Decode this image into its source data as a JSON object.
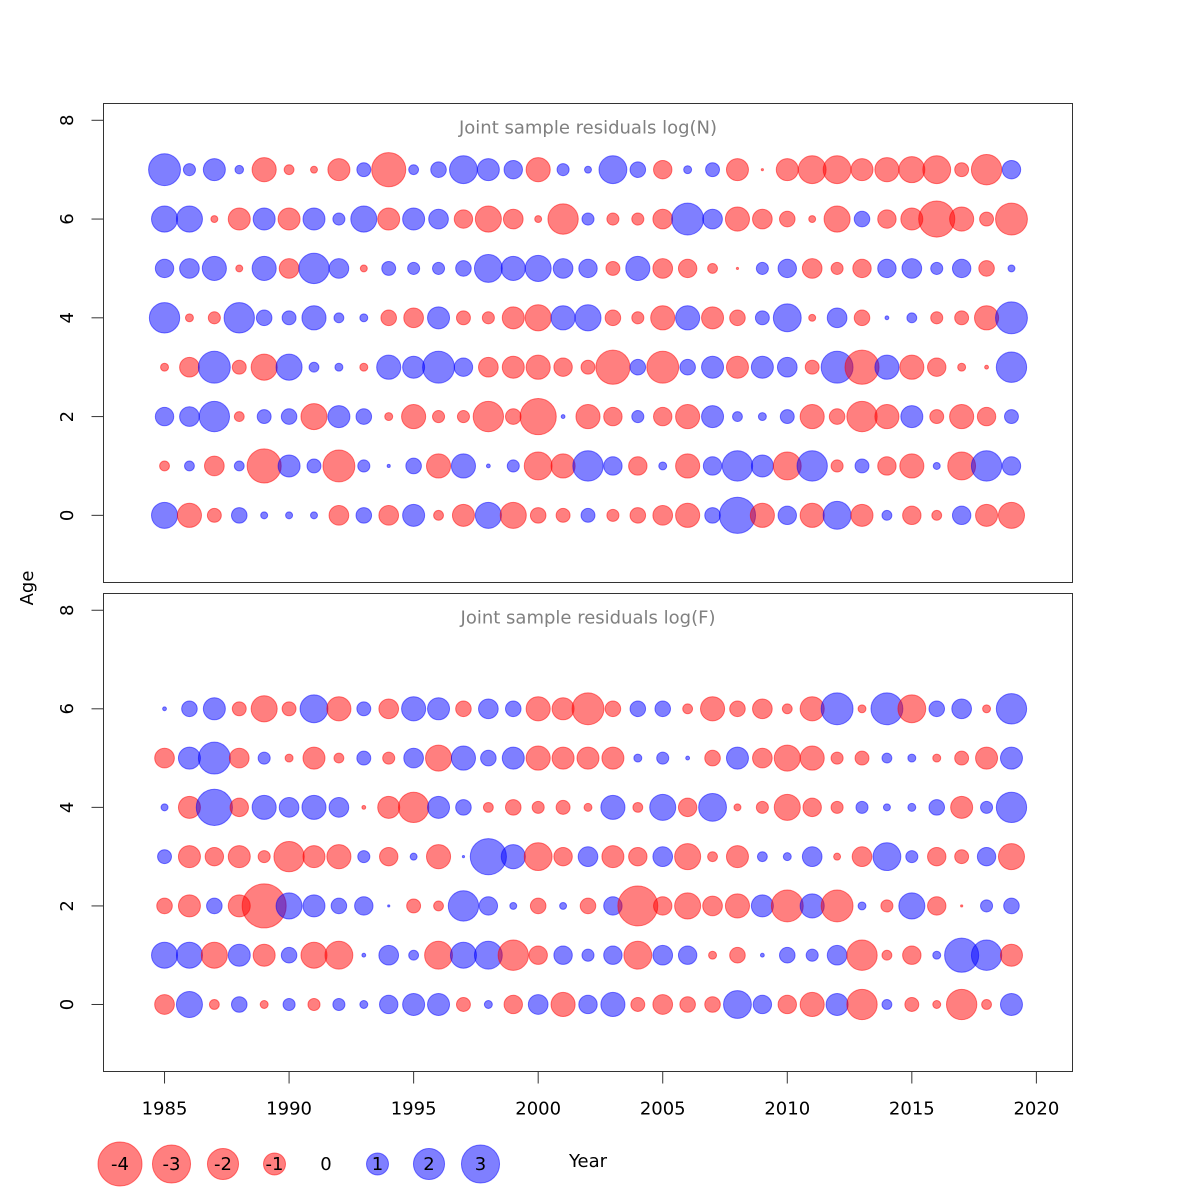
{
  "chart_data": [
    {
      "type": "bubble",
      "title": "Joint sample residuals log(N)",
      "ylabel": "Age",
      "x": [
        1985,
        1986,
        1987,
        1988,
        1989,
        1990,
        1991,
        1992,
        1993,
        1994,
        1995,
        1996,
        1997,
        1998,
        1999,
        2000,
        2001,
        2002,
        2003,
        2004,
        2005,
        2006,
        2007,
        2008,
        2009,
        2010,
        2011,
        2012,
        2013,
        2014,
        2015,
        2016,
        2017,
        2018,
        2019
      ],
      "y": [
        0,
        1,
        2,
        3,
        4,
        5,
        6,
        7
      ],
      "values": [
        [
          1.4,
          -1.2,
          -0.4,
          0.5,
          0.1,
          0.1,
          0.1,
          -0.8,
          0.5,
          -0.8,
          1.0,
          -0.2,
          -1.0,
          1.4,
          -1.4,
          -0.5,
          -0.4,
          0.4,
          -0.3,
          -0.5,
          -0.8,
          -1.2,
          0.5,
          2.7,
          -1.2,
          0.7,
          -1.2,
          1.6,
          -1.0,
          0.2,
          -0.7,
          -0.2,
          0.7,
          -1.0,
          -1.4
        ],
        [
          -0.2,
          0.2,
          -0.8,
          0.2,
          -2.4,
          1.0,
          0.4,
          -2.1,
          0.3,
          0.02,
          0.5,
          -1.2,
          1.2,
          0.03,
          0.3,
          -1.6,
          -1.2,
          1.9,
          0.7,
          -0.7,
          0.13,
          -1.2,
          0.7,
          1.9,
          1.0,
          -1.6,
          1.9,
          -0.3,
          0.4,
          -0.7,
          -1.2,
          0.1,
          -1.6,
          1.9,
          0.7
        ],
        [
          0.7,
          0.8,
          1.9,
          -0.2,
          0.4,
          0.5,
          -1.4,
          1.0,
          0.5,
          -0.13,
          -1.2,
          -0.3,
          -0.3,
          -1.9,
          -0.5,
          -2.7,
          0.03,
          -1.2,
          -0.7,
          0.3,
          -0.7,
          -1.2,
          1.0,
          0.2,
          0.13,
          0.4,
          -1.2,
          -0.5,
          -1.9,
          -1.2,
          1.0,
          -0.4,
          -1.2,
          -0.7,
          0.4
        ],
        [
          -0.13,
          -0.8,
          2.1,
          -0.4,
          -1.4,
          1.4,
          0.2,
          0.13,
          -0.13,
          1.2,
          1.0,
          2.1,
          0.7,
          -0.8,
          -1.0,
          -1.2,
          -0.7,
          -0.4,
          -2.4,
          0.5,
          -2.1,
          0.5,
          1.0,
          -1.0,
          1.0,
          0.8,
          -0.4,
          2.1,
          -2.4,
          1.2,
          -1.2,
          -0.7,
          -0.13,
          -0.03,
          1.9
        ],
        [
          1.9,
          -0.13,
          -0.3,
          1.9,
          0.5,
          0.4,
          1.2,
          0.2,
          0.13,
          -0.5,
          -0.8,
          1.0,
          -0.4,
          -0.3,
          -1.0,
          -1.4,
          1.2,
          1.4,
          -0.5,
          -0.3,
          -1.2,
          1.2,
          -1.0,
          -0.5,
          0.4,
          1.6,
          -0.1,
          0.8,
          -0.5,
          0.03,
          0.2,
          -0.3,
          -0.4,
          -1.2,
          2.1
        ],
        [
          0.7,
          0.8,
          1.2,
          -0.1,
          1.2,
          -0.8,
          1.9,
          0.8,
          -0.1,
          0.4,
          0.3,
          0.3,
          0.5,
          1.6,
          1.2,
          1.4,
          0.8,
          0.7,
          -0.4,
          1.2,
          -0.8,
          -0.7,
          -0.2,
          -0.01,
          0.3,
          0.7,
          -0.8,
          -0.3,
          -0.7,
          0.7,
          0.8,
          0.3,
          0.7,
          -0.5,
          0.1
        ],
        [
          1.4,
          1.4,
          -0.1,
          -1.0,
          1.0,
          -1.0,
          1.0,
          0.3,
          1.4,
          -1.0,
          1.0,
          0.8,
          -0.7,
          -1.4,
          -0.8,
          -0.1,
          -1.9,
          0.3,
          -0.3,
          -0.3,
          -0.8,
          2.1,
          0.8,
          -1.2,
          -0.8,
          -0.5,
          -0.1,
          -1.4,
          0.5,
          -0.7,
          -1.0,
          -2.7,
          -1.2,
          -0.4,
          -2.1
        ],
        [
          2.1,
          0.3,
          1.0,
          0.15,
          -1.2,
          -0.2,
          -0.1,
          -1.0,
          0.4,
          -2.4,
          0.2,
          0.5,
          1.6,
          1.0,
          0.7,
          -1.2,
          0.3,
          0.1,
          1.6,
          0.5,
          -0.7,
          0.13,
          0.4,
          -1.0,
          -0.01,
          -1.0,
          -1.6,
          -1.6,
          -1.0,
          -1.2,
          -1.4,
          -1.6,
          -0.4,
          -1.9,
          0.7
        ]
      ],
      "xlim": [
        1982.55,
        2021.45
      ],
      "ylim": [
        -1.36,
        8.34
      ],
      "yticks": [
        0,
        2,
        4,
        6,
        8
      ],
      "negative_color": "#ff0000",
      "positive_color": "#0000ff"
    },
    {
      "type": "bubble",
      "title": "Joint sample residuals log(F)",
      "xlabel": "Year",
      "x": [
        1985,
        1986,
        1987,
        1988,
        1989,
        1990,
        1991,
        1992,
        1993,
        1994,
        1995,
        1996,
        1997,
        1998,
        1999,
        2000,
        2001,
        2002,
        2003,
        2004,
        2005,
        2006,
        2007,
        2008,
        2009,
        2010,
        2011,
        2012,
        2013,
        2014,
        2015,
        2016,
        2017,
        2018,
        2019
      ],
      "y": [
        0,
        1,
        2,
        3,
        4,
        5,
        6
      ],
      "values": [
        [
          -0.8,
          1.4,
          -0.2,
          0.5,
          -0.13,
          0.3,
          -0.3,
          0.3,
          0.13,
          0.7,
          1.0,
          1.0,
          -0.4,
          0.13,
          -0.7,
          0.8,
          -1.2,
          0.7,
          1.2,
          -0.4,
          -0.8,
          -0.5,
          -0.5,
          1.6,
          0.7,
          -0.7,
          -1.2,
          1.0,
          -1.9,
          0.2,
          -0.4,
          -0.13,
          -1.9,
          -0.2,
          1.0
        ],
        [
          1.4,
          1.4,
          -1.4,
          1.0,
          -1.0,
          0.5,
          -1.4,
          -1.6,
          0.03,
          0.8,
          0.2,
          -1.6,
          1.4,
          1.6,
          -1.9,
          -0.7,
          0.7,
          0.3,
          0.7,
          -1.6,
          0.8,
          0.7,
          -0.13,
          -0.5,
          0.03,
          0.5,
          0.3,
          0.8,
          -1.9,
          -0.2,
          -0.7,
          0.13,
          2.4,
          1.9,
          -1.0
        ],
        [
          -0.5,
          -1.0,
          0.5,
          -1.0,
          -4.0,
          1.4,
          1.0,
          0.5,
          0.7,
          0.01,
          -0.4,
          -0.2,
          1.9,
          0.7,
          0.1,
          -0.5,
          0.1,
          -0.5,
          0.7,
          -3.3,
          -0.7,
          -1.4,
          -0.8,
          -1.2,
          1.0,
          -2.1,
          1.2,
          -2.1,
          0.13,
          -0.3,
          1.4,
          -0.7,
          -0.01,
          0.3,
          0.5
        ],
        [
          0.4,
          -1.0,
          -0.7,
          -1.0,
          -0.3,
          -1.9,
          -1.0,
          -1.2,
          0.3,
          -0.7,
          0.1,
          -1.2,
          0.01,
          2.7,
          1.2,
          -1.6,
          -0.7,
          0.8,
          -1.0,
          -0.7,
          0.8,
          -1.4,
          -0.2,
          -1.0,
          0.2,
          0.13,
          0.8,
          -0.1,
          -0.8,
          1.6,
          0.3,
          -0.7,
          -0.4,
          0.7,
          -1.4
        ],
        [
          0.1,
          -1.0,
          2.7,
          -0.7,
          1.2,
          0.8,
          1.2,
          0.8,
          -0.03,
          -1.0,
          -1.9,
          1.0,
          0.5,
          -0.2,
          -0.5,
          -0.3,
          -0.4,
          -0.13,
          1.2,
          -0.2,
          1.4,
          -0.7,
          1.6,
          -0.1,
          -0.3,
          -1.4,
          -0.7,
          -0.3,
          0.3,
          0.1,
          0.13,
          0.5,
          -1.0,
          0.3,
          1.9
        ],
        [
          -0.8,
          1.0,
          2.1,
          -0.8,
          0.3,
          -0.13,
          -1.0,
          -0.2,
          0.4,
          -0.3,
          0.8,
          -1.4,
          1.2,
          0.5,
          1.0,
          -1.2,
          -1.0,
          -1.0,
          -1.0,
          0.13,
          0.3,
          0.03,
          -0.5,
          1.0,
          -0.8,
          -1.4,
          -1.2,
          -0.3,
          -0.4,
          0.2,
          0.13,
          -0.13,
          -0.4,
          -1.0,
          1.0
        ],
        [
          0.03,
          0.5,
          1.0,
          -0.4,
          -1.4,
          -0.4,
          1.6,
          -1.2,
          0.4,
          -0.8,
          1.2,
          1.0,
          -0.5,
          0.8,
          0.5,
          -1.2,
          -1.0,
          -2.1,
          -0.5,
          0.5,
          0.5,
          -0.2,
          -1.2,
          -0.5,
          -0.8,
          -0.2,
          -1.2,
          2.1,
          -0.13,
          2.1,
          -1.6,
          0.5,
          0.8,
          -0.13,
          1.9
        ]
      ],
      "xlim": [
        1982.55,
        2021.45
      ],
      "ylim": [
        -1.36,
        8.34
      ],
      "yticks": [
        0,
        2,
        4,
        6,
        8
      ],
      "xticks": [
        1985,
        1990,
        1995,
        2000,
        2005,
        2010,
        2015,
        2020
      ],
      "size_legend": [
        -4,
        -3,
        -2,
        -1,
        0,
        1,
        2,
        3
      ],
      "negative_color": "#ff0000",
      "positive_color": "#0000ff"
    }
  ]
}
